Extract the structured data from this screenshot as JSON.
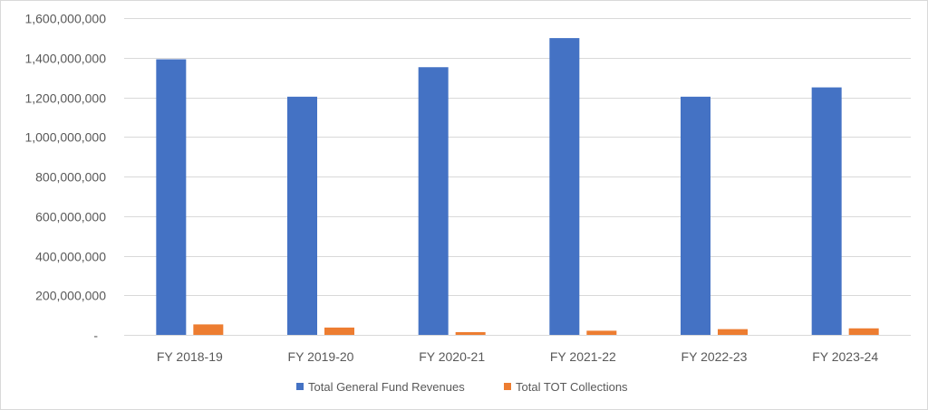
{
  "chart_data": {
    "type": "bar",
    "title": "",
    "xlabel": "",
    "ylabel": "",
    "categories": [
      "FY 2018-19",
      "FY 2019-20",
      "FY 2020-21",
      "FY 2021-22",
      "FY 2022-23",
      "FY 2023-24"
    ],
    "series": [
      {
        "name": "Total General Fund Revenues",
        "color": "#4472C4",
        "values": [
          1392000000,
          1203000000,
          1352000000,
          1499000000,
          1203000000,
          1250000000
        ]
      },
      {
        "name": "Total TOT Collections",
        "color": "#ED7D31",
        "values": [
          53000000,
          37000000,
          14000000,
          21000000,
          29000000,
          33000000
        ]
      }
    ],
    "y_ticks": [
      "-",
      "200,000,000",
      "400,000,000",
      "600,000,000",
      "800,000,000",
      "1,000,000,000",
      "1,200,000,000",
      "1,400,000,000",
      "1,600,000,000"
    ],
    "ylim": [
      0,
      1600000000
    ],
    "grid": true,
    "legend_position": "bottom"
  }
}
